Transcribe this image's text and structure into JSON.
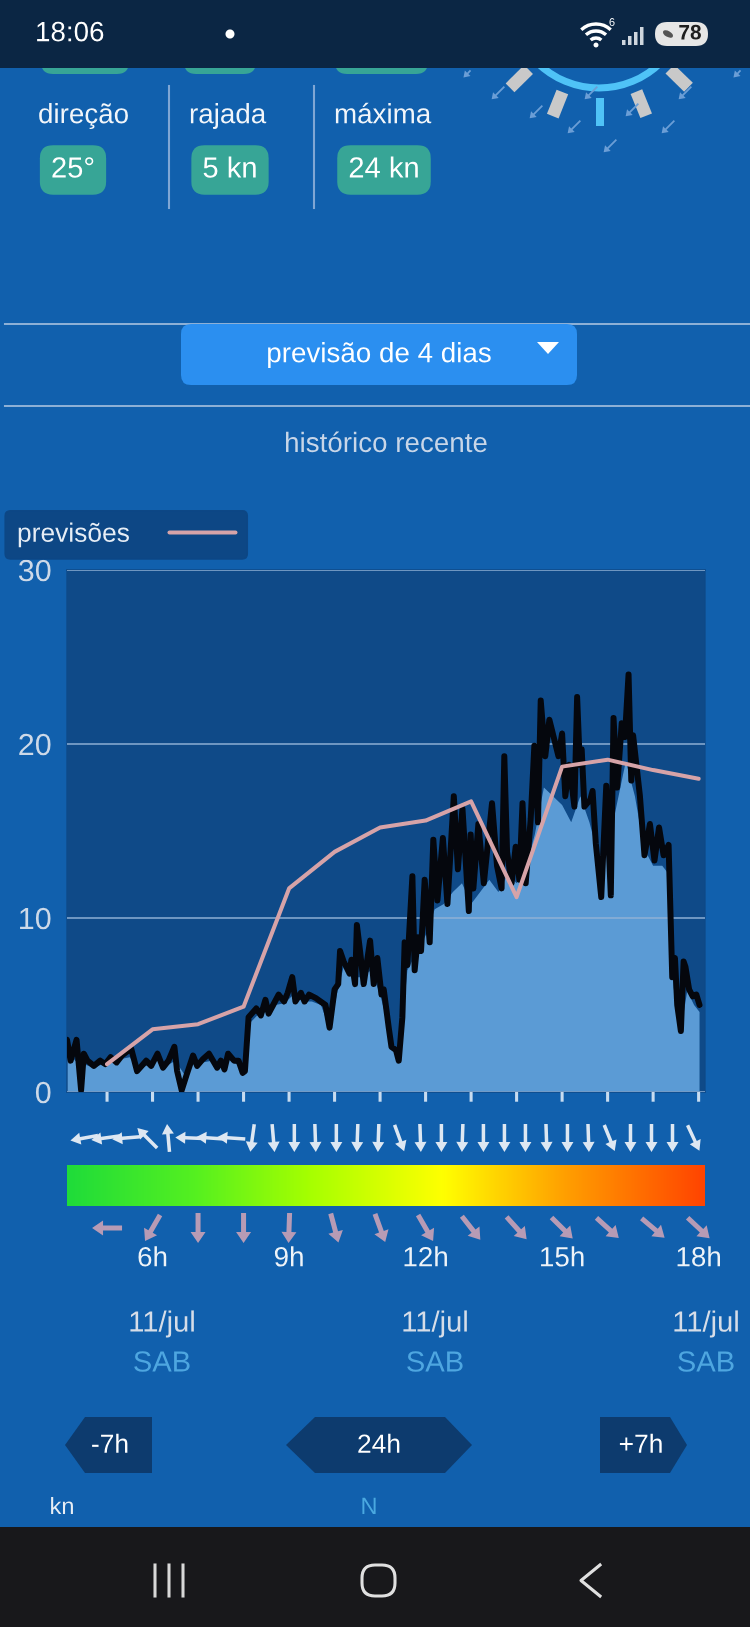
{
  "chart_data": {
    "type": "line",
    "title": "histórico recente",
    "xlim": [
      4.12,
      18.14
    ],
    "xticks": [
      {
        "value": 5,
        "label": null
      },
      {
        "value": 6,
        "label": "6h"
      },
      {
        "value": 7,
        "label": null
      },
      {
        "value": 8,
        "label": null
      },
      {
        "value": 9,
        "label": "9h"
      },
      {
        "value": 10,
        "label": null
      },
      {
        "value": 11,
        "label": null
      },
      {
        "value": 12,
        "label": "12h"
      },
      {
        "value": 13,
        "label": null
      },
      {
        "value": 14,
        "label": null
      },
      {
        "value": 15,
        "label": "15h"
      },
      {
        "value": 16,
        "label": null
      },
      {
        "value": 17,
        "label": null
      },
      {
        "value": 18,
        "label": "18h"
      }
    ],
    "ylim": [
      0,
      30
    ],
    "yticks": [
      0,
      10,
      20,
      30
    ],
    "grid": "y",
    "legend": "top left",
    "series": [
      {
        "type": "area",
        "color": "#5b9bd5",
        "x": [
          4.12,
          4.3,
          4.5,
          4.7,
          4.9,
          5.1,
          5.3,
          5.5,
          5.7,
          5.9,
          6.1,
          6.3,
          6.5,
          6.7,
          6.9,
          7.1,
          7.3,
          7.5,
          7.7,
          7.9,
          8.05,
          8.15,
          8.3,
          8.5,
          8.7,
          8.9,
          9.1,
          9.3,
          9.5,
          9.7,
          9.9,
          10.05,
          10.2,
          10.4,
          10.6,
          10.8,
          11.0,
          11.2,
          11.4,
          11.5,
          11.6,
          11.8,
          12.0,
          12.2,
          12.4,
          12.6,
          12.8,
          13.0,
          13.2,
          13.4,
          13.6,
          13.8,
          14.0,
          14.2,
          14.4,
          14.6,
          14.8,
          15.0,
          15.2,
          15.4,
          15.6,
          15.8,
          16.0,
          16.2,
          16.4,
          16.6,
          16.8,
          17.0,
          17.2,
          17.35,
          17.45,
          17.6,
          17.75,
          17.9,
          18.02
        ],
        "values": [
          2.4,
          1.8,
          1.6,
          1.4,
          1.6,
          1.8,
          1.9,
          2.0,
          1.2,
          1.6,
          1.9,
          1.5,
          1.8,
          1.0,
          1.8,
          1.7,
          1.8,
          1.6,
          1.9,
          1.5,
          1.2,
          4.0,
          4.4,
          4.6,
          5.0,
          5.1,
          5.6,
          5.2,
          5.2,
          5.0,
          3.6,
          5.6,
          7.2,
          6.6,
          6.6,
          7.0,
          5.6,
          3.6,
          1.8,
          4.2,
          7.0,
          8.0,
          9.0,
          10.5,
          10.8,
          11.5,
          12.0,
          10.8,
          11.5,
          12.2,
          11.5,
          12.5,
          12.0,
          12.8,
          14.8,
          17.5,
          17.0,
          16.5,
          15.5,
          17.0,
          15.5,
          13.5,
          14.0,
          16.5,
          19.0,
          17.0,
          14.0,
          13.0,
          13.0,
          12.5,
          6.0,
          3.4,
          5.8,
          5.0,
          4.6
        ]
      },
      {
        "color": "#05070d",
        "x": [
          4.12,
          4.2,
          4.33,
          4.43,
          4.49,
          4.57,
          4.71,
          4.85,
          4.96,
          5.08,
          5.21,
          5.33,
          5.53,
          5.66,
          5.86,
          5.97,
          6.11,
          6.23,
          6.35,
          6.48,
          6.54,
          6.64,
          6.75,
          6.89,
          6.98,
          7.11,
          7.24,
          7.42,
          7.5,
          7.58,
          7.66,
          7.79,
          7.89,
          7.98,
          8.03,
          8.11,
          8.28,
          8.38,
          8.48,
          8.55,
          8.65,
          8.77,
          8.89,
          8.97,
          9.07,
          9.14,
          9.26,
          9.34,
          9.44,
          9.59,
          9.8,
          9.89,
          10.0,
          10.08,
          10.12,
          10.2,
          10.33,
          10.37,
          10.45,
          10.49,
          10.56,
          10.64,
          10.78,
          10.86,
          10.94,
          11.03,
          11.08,
          11.19,
          11.25,
          11.35,
          11.41,
          11.49,
          11.54,
          11.6,
          11.71,
          11.76,
          11.83,
          11.9,
          11.98,
          12.09,
          12.17,
          12.26,
          12.38,
          12.48,
          12.62,
          12.71,
          12.81,
          12.95,
          12.99,
          13.05,
          13.16,
          13.28,
          13.46,
          13.57,
          13.67,
          13.73,
          13.79,
          13.89,
          13.98,
          14.06,
          14.13,
          14.2,
          14.31,
          14.39,
          14.47,
          14.53,
          14.63,
          14.72,
          14.92,
          15.0,
          15.07,
          15.16,
          15.27,
          15.33,
          15.39,
          15.43,
          15.49,
          15.62,
          15.67,
          15.74,
          15.86,
          15.97,
          16.07,
          16.13,
          16.21,
          16.31,
          16.38,
          16.46,
          16.52,
          16.56,
          16.71,
          16.81,
          16.93,
          17.03,
          17.13,
          17.23,
          17.34,
          17.42,
          17.48,
          17.53,
          17.61,
          17.67,
          17.71,
          17.79,
          17.87,
          17.95,
          18.02
        ],
        "values": [
          3.0,
          1.8,
          3.0,
          0.1,
          2.2,
          1.8,
          1.5,
          1.8,
          1.6,
          2.0,
          1.7,
          2.1,
          2.5,
          1.2,
          1.8,
          1.5,
          2.2,
          1.4,
          1.8,
          2.6,
          1.2,
          0.1,
          1.0,
          2.1,
          1.5,
          1.9,
          2.2,
          1.4,
          1.8,
          1.3,
          2.2,
          1.8,
          1.8,
          1.1,
          1.2,
          4.3,
          4.8,
          4.4,
          5.3,
          4.5,
          5.0,
          5.6,
          5.2,
          5.7,
          6.6,
          5.2,
          5.7,
          5.2,
          5.6,
          5.4,
          5.0,
          3.7,
          5.9,
          6.2,
          8.1,
          7.5,
          6.8,
          7.6,
          6.2,
          9.6,
          8.1,
          6.2,
          8.7,
          6.2,
          7.7,
          5.6,
          5.9,
          3.7,
          2.6,
          2.4,
          1.8,
          4.3,
          8.6,
          7.3,
          12.4,
          7.0,
          8.9,
          8.1,
          12.2,
          8.6,
          14.5,
          11.0,
          14.6,
          10.8,
          17.0,
          12.8,
          16.3,
          10.4,
          14.8,
          11.7,
          15.4,
          12.0,
          16.6,
          13.0,
          11.7,
          19.3,
          13.8,
          12.0,
          14.1,
          12.2,
          16.6,
          12.0,
          15.7,
          19.9,
          15.5,
          22.5,
          19.3,
          21.4,
          19.3,
          20.6,
          17.0,
          18.8,
          16.4,
          22.7,
          18.8,
          19.7,
          16.4,
          16.8,
          17.3,
          14.3,
          11.2,
          17.6,
          11.3,
          21.5,
          17.5,
          21.2,
          20.4,
          24.0,
          17.9,
          20.5,
          17.0,
          13.6,
          15.4,
          13.3,
          15.2,
          13.6,
          14.2,
          6.6,
          7.7,
          5.0,
          3.5,
          7.5,
          7.2,
          5.9,
          5.5,
          5.6,
          5.0
        ]
      },
      {
        "name": "previsões",
        "color": "#d6a3a8",
        "x": [
          5,
          6,
          7,
          8,
          9,
          10,
          11,
          12,
          13,
          14,
          15,
          16,
          17,
          18
        ],
        "values": [
          1.6,
          3.6,
          3.9,
          4.9,
          11.7,
          13.8,
          15.2,
          15.6,
          16.7,
          11.2,
          18.7,
          19.1,
          18.5,
          18.0
        ]
      }
    ],
    "annotations": [
      "18:06",
      "6",
      "78",
      "direção",
      "25°",
      "rajada",
      "5 kn",
      "máxima",
      "24 kn",
      "previsão de 4 dias",
      "-7h",
      "24h",
      "+7h",
      "kn",
      "N",
      "11/jul",
      "SAB",
      "11/jul",
      "SAB",
      "11/jul",
      "SAB"
    ]
  }
}
